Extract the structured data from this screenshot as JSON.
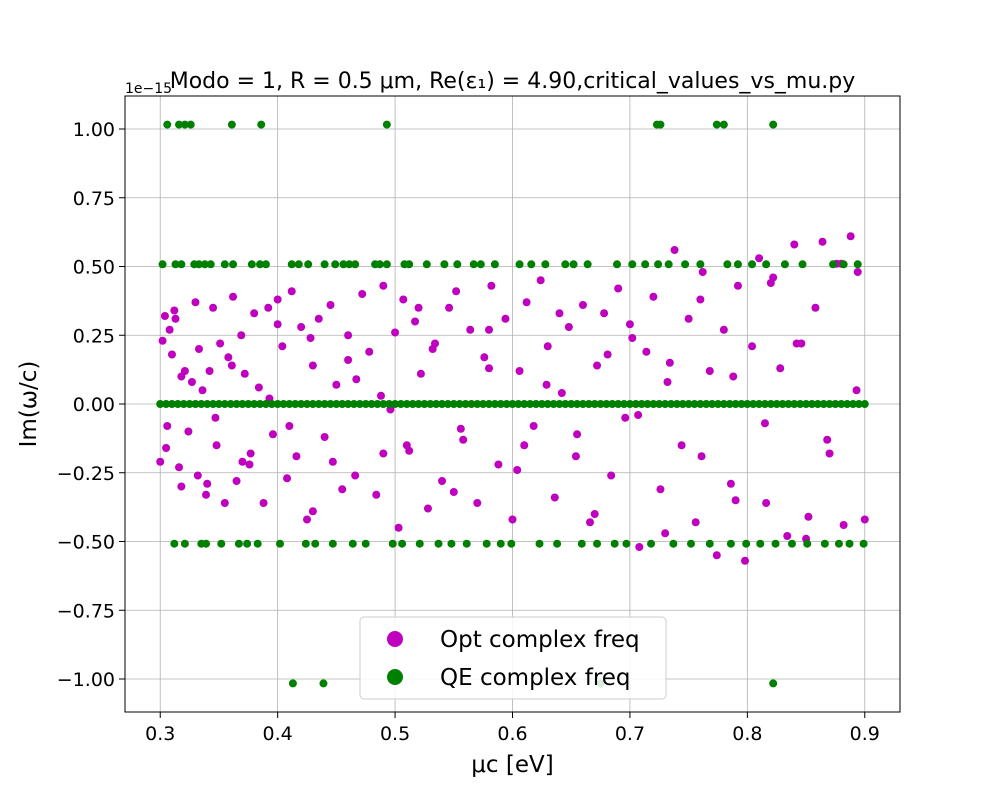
{
  "chart_data": {
    "type": "scatter",
    "title": "Modo = 1, R = 0.5 μm, Re(ε₁) = 4.90,critical_values_vs_mu.py",
    "xlabel": "μc [eV]",
    "ylabel": "Im(ω/c)",
    "y_offset_label": "1e−15",
    "xlim": [
      0.27,
      0.93
    ],
    "ylim": [
      -1.12,
      1.12
    ],
    "x_ticks": [
      0.3,
      0.4,
      0.5,
      0.6,
      0.7,
      0.8,
      0.9
    ],
    "x_tick_labels": [
      "0.3",
      "0.4",
      "0.5",
      "0.6",
      "0.7",
      "0.8",
      "0.9"
    ],
    "y_ticks": [
      -1.0,
      -0.75,
      -0.5,
      -0.25,
      0.0,
      0.25,
      0.5,
      0.75,
      1.0
    ],
    "y_tick_labels": [
      "−1.00",
      "−0.75",
      "−0.50",
      "−0.25",
      "0.00",
      "0.25",
      "0.50",
      "0.75",
      "1.00"
    ],
    "grid": true,
    "legend_position": "lower-center",
    "series": [
      {
        "name": "Opt complex freq",
        "color": "#bf00bf",
        "x": [
          0.3,
          0.302,
          0.304,
          0.306,
          0.308,
          0.31,
          0.313,
          0.316,
          0.318,
          0.321,
          0.324,
          0.327,
          0.33,
          0.333,
          0.336,
          0.339,
          0.342,
          0.345,
          0.348,
          0.351,
          0.355,
          0.358,
          0.362,
          0.365,
          0.369,
          0.372,
          0.376,
          0.38,
          0.384,
          0.388,
          0.392,
          0.396,
          0.4,
          0.404,
          0.408,
          0.412,
          0.416,
          0.42,
          0.425,
          0.43,
          0.435,
          0.44,
          0.445,
          0.45,
          0.455,
          0.46,
          0.466,
          0.472,
          0.478,
          0.484,
          0.49,
          0.496,
          0.5,
          0.503,
          0.507,
          0.512,
          0.517,
          0.522,
          0.528,
          0.534,
          0.54,
          0.546,
          0.552,
          0.558,
          0.564,
          0.57,
          0.576,
          0.582,
          0.588,
          0.594,
          0.6,
          0.606,
          0.612,
          0.618,
          0.624,
          0.63,
          0.636,
          0.642,
          0.648,
          0.654,
          0.66,
          0.666,
          0.672,
          0.678,
          0.684,
          0.69,
          0.696,
          0.702,
          0.708,
          0.714,
          0.72,
          0.726,
          0.732,
          0.738,
          0.744,
          0.75,
          0.756,
          0.762,
          0.768,
          0.774,
          0.78,
          0.786,
          0.792,
          0.798,
          0.804,
          0.81,
          0.816,
          0.822,
          0.828,
          0.834,
          0.84,
          0.846,
          0.852,
          0.858,
          0.864,
          0.87,
          0.876,
          0.882,
          0.888,
          0.894,
          0.9,
          0.305,
          0.318,
          0.332,
          0.347,
          0.361,
          0.377,
          0.393,
          0.41,
          0.428,
          0.447,
          0.467,
          0.488,
          0.51,
          0.532,
          0.556,
          0.58,
          0.604,
          0.629,
          0.655,
          0.681,
          0.707,
          0.734,
          0.761,
          0.788,
          0.815,
          0.842,
          0.868,
          0.893,
          0.312,
          0.34,
          0.37,
          0.4,
          0.43,
          0.46,
          0.49,
          0.52,
          0.55,
          0.58,
          0.61,
          0.64,
          0.67,
          0.7,
          0.73,
          0.76,
          0.79,
          0.82,
          0.85,
          0.88
        ],
        "y": [
          -0.21,
          0.23,
          0.32,
          -0.08,
          0.27,
          0.18,
          0.31,
          -0.23,
          -0.3,
          0.12,
          -0.1,
          0.08,
          0.37,
          0.2,
          0.05,
          -0.33,
          0.12,
          0.35,
          -0.15,
          0.22,
          -0.36,
          0.17,
          0.39,
          -0.28,
          0.25,
          0.11,
          -0.22,
          0.33,
          0.06,
          -0.36,
          0.35,
          -0.11,
          0.38,
          0.21,
          -0.27,
          0.41,
          -0.19,
          0.28,
          -0.42,
          0.14,
          0.31,
          -0.12,
          0.36,
          0.07,
          -0.31,
          0.25,
          -0.26,
          0.4,
          0.19,
          -0.33,
          0.43,
          -0.02,
          0.26,
          -0.45,
          0.38,
          -0.17,
          0.3,
          0.11,
          -0.38,
          0.22,
          -0.28,
          0.35,
          0.41,
          -0.13,
          0.27,
          -0.36,
          0.17,
          0.43,
          -0.22,
          0.31,
          -0.42,
          0.12,
          0.37,
          -0.08,
          0.45,
          0.21,
          -0.34,
          0.04,
          0.28,
          -0.19,
          0.36,
          -0.43,
          0.14,
          0.33,
          -0.26,
          0.42,
          -0.05,
          0.24,
          -0.52,
          0.19,
          0.39,
          -0.31,
          0.08,
          0.56,
          -0.15,
          0.31,
          -0.43,
          0.48,
          0.12,
          -0.55,
          0.27,
          -0.29,
          0.43,
          -0.57,
          0.21,
          0.53,
          -0.36,
          0.46,
          0.13,
          -0.48,
          0.58,
          0.22,
          -0.41,
          0.35,
          0.59,
          -0.18,
          0.51,
          -0.44,
          0.61,
          0.48,
          -0.42,
          -0.16,
          0.1,
          -0.26,
          -0.05,
          0.14,
          -0.18,
          0.02,
          -0.08,
          0.24,
          -0.21,
          0.09,
          0.03,
          -0.15,
          0.2,
          -0.09,
          0.13,
          -0.24,
          0.07,
          -0.11,
          0.18,
          -0.04,
          0.15,
          -0.19,
          0.1,
          -0.07,
          0.22,
          -0.13,
          0.05,
          0.34,
          -0.29,
          -0.21,
          0.29,
          -0.39,
          0.16,
          -0.18,
          0.35,
          -0.32,
          0.27,
          -0.15,
          0.33,
          -0.4,
          0.29,
          -0.47,
          0.38,
          -0.35,
          0.44,
          -0.49,
          0.51
        ]
      },
      {
        "name": "QE complex freq",
        "color": "#008000",
        "x": [
          0.3,
          0.305,
          0.31,
          0.315,
          0.32,
          0.325,
          0.33,
          0.335,
          0.34,
          0.345,
          0.35,
          0.355,
          0.36,
          0.365,
          0.37,
          0.375,
          0.38,
          0.385,
          0.39,
          0.395,
          0.4,
          0.405,
          0.41,
          0.415,
          0.42,
          0.425,
          0.43,
          0.435,
          0.44,
          0.445,
          0.45,
          0.455,
          0.46,
          0.465,
          0.47,
          0.475,
          0.48,
          0.485,
          0.49,
          0.495,
          0.5,
          0.505,
          0.51,
          0.515,
          0.52,
          0.525,
          0.53,
          0.535,
          0.54,
          0.545,
          0.55,
          0.555,
          0.56,
          0.565,
          0.57,
          0.575,
          0.58,
          0.585,
          0.59,
          0.595,
          0.6,
          0.605,
          0.61,
          0.615,
          0.62,
          0.625,
          0.63,
          0.635,
          0.64,
          0.645,
          0.65,
          0.655,
          0.66,
          0.665,
          0.67,
          0.675,
          0.68,
          0.685,
          0.69,
          0.695,
          0.7,
          0.705,
          0.71,
          0.715,
          0.72,
          0.725,
          0.73,
          0.735,
          0.74,
          0.745,
          0.75,
          0.755,
          0.76,
          0.765,
          0.77,
          0.775,
          0.78,
          0.785,
          0.79,
          0.795,
          0.8,
          0.805,
          0.81,
          0.815,
          0.82,
          0.825,
          0.83,
          0.835,
          0.84,
          0.845,
          0.85,
          0.855,
          0.86,
          0.865,
          0.87,
          0.875,
          0.88,
          0.885,
          0.89,
          0.895,
          0.9,
          0.302,
          0.313,
          0.318,
          0.329,
          0.333,
          0.338,
          0.343,
          0.355,
          0.362,
          0.378,
          0.385,
          0.39,
          0.412,
          0.418,
          0.426,
          0.44,
          0.449,
          0.456,
          0.461,
          0.466,
          0.483,
          0.487,
          0.493,
          0.508,
          0.512,
          0.527,
          0.542,
          0.553,
          0.567,
          0.573,
          0.585,
          0.606,
          0.616,
          0.628,
          0.645,
          0.652,
          0.664,
          0.689,
          0.702,
          0.713,
          0.724,
          0.733,
          0.747,
          0.76,
          0.783,
          0.792,
          0.804,
          0.816,
          0.832,
          0.847,
          0.873,
          0.882,
          0.894,
          0.312,
          0.321,
          0.335,
          0.339,
          0.352,
          0.367,
          0.374,
          0.383,
          0.402,
          0.424,
          0.432,
          0.447,
          0.464,
          0.475,
          0.498,
          0.506,
          0.521,
          0.537,
          0.548,
          0.561,
          0.578,
          0.59,
          0.599,
          0.623,
          0.638,
          0.659,
          0.672,
          0.687,
          0.697,
          0.718,
          0.737,
          0.752,
          0.768,
          0.786,
          0.799,
          0.811,
          0.824,
          0.838,
          0.851,
          0.866,
          0.878,
          0.887,
          0.899,
          0.306,
          0.316,
          0.321,
          0.326,
          0.361,
          0.386,
          0.493,
          0.723,
          0.726,
          0.774,
          0.78,
          0.822,
          0.413,
          0.439,
          0.675,
          0.822
        ],
        "y": [
          0.0,
          0.0,
          0.0,
          0.0,
          0.0,
          0.0,
          0.0,
          0.0,
          0.0,
          0.0,
          0.0,
          0.0,
          0.0,
          0.0,
          0.0,
          0.0,
          0.0,
          0.0,
          0.0,
          0.0,
          0.0,
          0.0,
          0.0,
          0.0,
          0.0,
          0.0,
          0.0,
          0.0,
          0.0,
          0.0,
          0.0,
          0.0,
          0.0,
          0.0,
          0.0,
          0.0,
          0.0,
          0.0,
          0.0,
          0.0,
          0.0,
          0.0,
          0.0,
          0.0,
          0.0,
          0.0,
          0.0,
          0.0,
          0.0,
          0.0,
          0.0,
          0.0,
          0.0,
          0.0,
          0.0,
          0.0,
          0.0,
          0.0,
          0.0,
          0.0,
          0.0,
          0.0,
          0.0,
          0.0,
          0.0,
          0.0,
          0.0,
          0.0,
          0.0,
          0.0,
          0.0,
          0.0,
          0.0,
          0.0,
          0.0,
          0.0,
          0.0,
          0.0,
          0.0,
          0.0,
          0.0,
          0.0,
          0.0,
          0.0,
          0.0,
          0.0,
          0.0,
          0.0,
          0.0,
          0.0,
          0.0,
          0.0,
          0.0,
          0.0,
          0.0,
          0.0,
          0.0,
          0.0,
          0.0,
          0.0,
          0.0,
          0.0,
          0.0,
          0.0,
          0.0,
          0.0,
          0.0,
          0.0,
          0.0,
          0.0,
          0.0,
          0.0,
          0.0,
          0.0,
          0.0,
          0.0,
          0.0,
          0.0,
          0.0,
          0.0,
          0.0,
          0.508,
          0.508,
          0.508,
          0.508,
          0.508,
          0.508,
          0.508,
          0.508,
          0.508,
          0.508,
          0.508,
          0.508,
          0.508,
          0.508,
          0.508,
          0.508,
          0.508,
          0.508,
          0.508,
          0.508,
          0.508,
          0.508,
          0.508,
          0.508,
          0.508,
          0.508,
          0.508,
          0.508,
          0.508,
          0.508,
          0.508,
          0.508,
          0.508,
          0.508,
          0.508,
          0.508,
          0.508,
          0.508,
          0.508,
          0.508,
          0.508,
          0.508,
          0.508,
          0.508,
          0.508,
          0.508,
          0.508,
          0.508,
          0.508,
          0.508,
          0.508,
          0.508,
          0.508,
          -0.508,
          -0.508,
          -0.508,
          -0.508,
          -0.508,
          -0.508,
          -0.508,
          -0.508,
          -0.508,
          -0.508,
          -0.508,
          -0.508,
          -0.508,
          -0.508,
          -0.508,
          -0.508,
          -0.508,
          -0.508,
          -0.508,
          -0.508,
          -0.508,
          -0.508,
          -0.508,
          -0.508,
          -0.508,
          -0.508,
          -0.508,
          -0.508,
          -0.508,
          -0.508,
          -0.508,
          -0.508,
          -0.508,
          -0.508,
          -0.508,
          -0.508,
          -0.508,
          -0.508,
          -0.508,
          -0.508,
          -0.508,
          -0.508,
          -0.508,
          1.016,
          1.016,
          1.016,
          1.016,
          1.016,
          1.016,
          1.016,
          1.016,
          1.016,
          1.016,
          1.016,
          1.016,
          -1.016,
          -1.016,
          -1.016,
          -1.016
        ]
      }
    ]
  }
}
